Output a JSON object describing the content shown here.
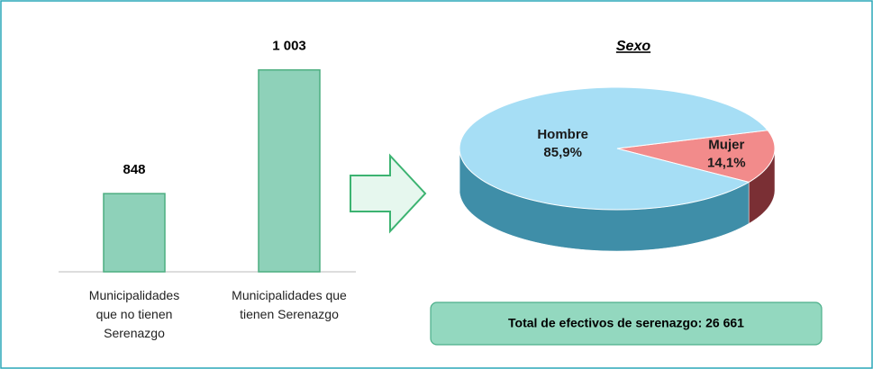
{
  "chart_data": [
    {
      "type": "bar",
      "categories": [
        "Municipalidades que no tienen Serenazgo",
        "Municipalidades que tienen Serenazgo"
      ],
      "values": [
        848,
        1003
      ],
      "value_labels": [
        "848",
        "1 003"
      ],
      "color": "#8ed1b9",
      "ylim": [
        750,
        1050
      ]
    },
    {
      "type": "pie",
      "title": "Sexo",
      "categories": [
        "Hombre",
        "Mujer"
      ],
      "values": [
        85.9,
        14.1
      ],
      "value_labels": [
        "85,9%",
        "14,1%"
      ],
      "colors": [
        "#a6def5",
        "#f28b8b"
      ]
    }
  ],
  "summary": {
    "text": "Total de efectivos de serenazgo: 26 661"
  }
}
